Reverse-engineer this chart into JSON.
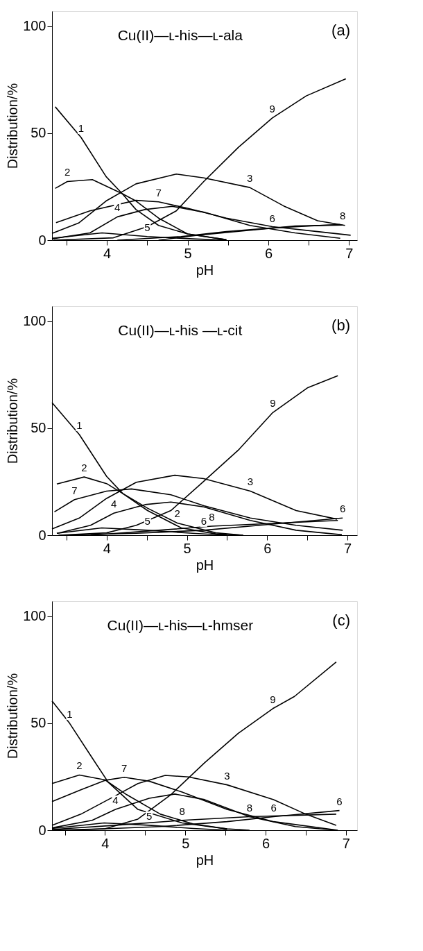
{
  "chart_data": [
    {
      "type": "line",
      "title": "Cu(II)—ʟ-his—ʟ-ala",
      "xlabel": "pH",
      "ylabel": "Distribution/%",
      "xlim": [
        3.32,
        7.1
      ],
      "ylim": [
        0,
        107
      ],
      "xticks": [
        {
          "value": 3.5,
          "label": null
        },
        4,
        {
          "value": 4.5,
          "label": null
        },
        5,
        {
          "value": 5.5,
          "label": null
        },
        6,
        {
          "value": 6.5,
          "label": null
        },
        7
      ],
      "yticks": [
        0,
        50,
        100
      ],
      "grid": false,
      "legend": false,
      "line_style": "solid",
      "marker": "none",
      "series": [
        {
          "color": "#000000",
          "x": [
            3.36,
            3.68,
            3.99,
            4.19,
            4.36,
            4.64,
            5.0,
            5.48
          ],
          "values": [
            62.3,
            48,
            29.7,
            21.7,
            14.3,
            6.9,
            2.9,
            0.2
          ]
        },
        {
          "color": "#000000",
          "x": [
            3.36,
            3.51,
            3.82,
            4.19,
            4.36,
            4.64,
            5.0,
            5.48
          ],
          "values": [
            24.2,
            27.4,
            28.3,
            21.7,
            18.3,
            10.3,
            2.9,
            0.2
          ]
        },
        {
          "color": "#000000",
          "x": [
            3.32,
            3.65,
            3.99,
            4.36,
            4.86,
            5.2,
            5.77,
            6.19,
            6.61,
            6.95
          ],
          "values": [
            3.2,
            8,
            18.3,
            26.3,
            30.9,
            29.1,
            24.6,
            16,
            9.1,
            6.9
          ]
        },
        {
          "color": "#000000",
          "x": [
            3.32,
            3.79,
            4.13,
            4.47,
            4.81,
            5.2,
            5.77,
            6.33,
            6.89
          ],
          "values": [
            0.6,
            3.4,
            10.9,
            14.3,
            15.8,
            13.1,
            6.9,
            3.4,
            0.9
          ]
        },
        {
          "color": "#000000",
          "x": [
            3.32,
            3.94,
            4.5,
            5.06,
            5.48
          ],
          "values": [
            0.9,
            3.4,
            1.7,
            0.6,
            0
          ]
        },
        {
          "color": "#000000",
          "x": [
            4.13,
            4.92,
            5.48,
            6.05,
            6.89
          ],
          "values": [
            0,
            1.7,
            4,
            5.7,
            7.4
          ]
        },
        {
          "color": "#000000",
          "x": [
            3.37,
            3.79,
            4.36,
            4.64,
            5.0,
            5.48,
            6.05,
            6.61,
            7.02
          ],
          "values": [
            8.2,
            13.7,
            18.6,
            17.9,
            14.9,
            10.3,
            6.3,
            4,
            2.3
          ]
        },
        {
          "color": "#000000",
          "x": [
            4.64,
            5.12,
            5.77,
            6.33,
            6.92
          ],
          "values": [
            0,
            2.3,
            4.6,
            6.6,
            7.1
          ]
        },
        {
          "color": "#000000",
          "x": [
            3.34,
            4.08,
            4.5,
            4.86,
            5.2,
            5.63,
            6.05,
            6.47,
            6.96
          ],
          "values": [
            0,
            1.1,
            6.3,
            13.7,
            27.4,
            43.4,
            57.1,
            67.4,
            75.4
          ]
        }
      ],
      "annotations": [
        "(a)",
        {
          "text": "1",
          "x": 3.68,
          "y": 48
        },
        {
          "text": "2",
          "x": 3.51,
          "y": 27.4
        },
        {
          "text": "3",
          "x": 5.77,
          "y": 24.6
        },
        {
          "text": "4",
          "x": 4.13,
          "y": 10.9
        },
        {
          "text": "5",
          "x": 4.5,
          "y": 1.7
        },
        {
          "text": "6",
          "x": 6.05,
          "y": 5.7
        },
        {
          "text": "7",
          "x": 4.64,
          "y": 17.9
        },
        {
          "text": "8",
          "x": 6.92,
          "y": 7.1
        },
        {
          "text": "9",
          "x": 6.05,
          "y": 57.1
        }
      ]
    },
    {
      "type": "line",
      "title": "Cu(II)—ʟ-his —ʟ-cit",
      "xlabel": "pH",
      "ylabel": "Distribution/%",
      "xlim": [
        3.32,
        7.12
      ],
      "ylim": [
        0,
        107
      ],
      "xticks": [
        {
          "value": 3.5,
          "label": null
        },
        4,
        {
          "value": 4.5,
          "label": null
        },
        5,
        {
          "value": 5.5,
          "label": null
        },
        6,
        {
          "value": 6.5,
          "label": null
        },
        7
      ],
      "yticks": [
        0,
        50,
        100
      ],
      "grid": false,
      "legend": false,
      "line_style": "solid",
      "marker": "none",
      "series": [
        {
          "color": "#000000",
          "x": [
            3.32,
            3.66,
            4.0,
            4.2,
            4.51,
            4.93,
            5.36,
            5.7
          ],
          "values": [
            61.9,
            47,
            27.5,
            19.5,
            11.5,
            3.4,
            0.6,
            0
          ]
        },
        {
          "color": "#000000",
          "x": [
            3.38,
            3.72,
            4.0,
            4.2,
            4.51,
            4.88,
            5.36,
            5.7
          ],
          "values": [
            23.9,
            27.2,
            24.1,
            19.5,
            12.6,
            5.7,
            1.1,
            0
          ]
        },
        {
          "color": "#000000",
          "x": [
            3.32,
            3.66,
            4.0,
            4.37,
            4.85,
            5.21,
            5.79,
            6.36,
            6.87
          ],
          "values": [
            2.9,
            8,
            17.2,
            24.7,
            28,
            26.4,
            20.6,
            11.5,
            7.5
          ]
        },
        {
          "color": "#000000",
          "x": [
            3.38,
            3.8,
            4.09,
            4.48,
            4.8,
            5.21,
            5.79,
            6.36,
            6.93
          ],
          "values": [
            0.8,
            4.6,
            10.3,
            14.3,
            15.5,
            13.2,
            6.9,
            2.3,
            0.2
          ]
        },
        {
          "color": "#000000",
          "x": [
            3.38,
            3.94,
            4.51,
            5.07,
            5.5
          ],
          "values": [
            0.9,
            3.4,
            2.3,
            0.9,
            0
          ]
        },
        {
          "color": "#000000",
          "x": [
            3.44,
            4.37,
            5.21,
            6.07,
            6.94
          ],
          "values": [
            0,
            0.9,
            2.3,
            5.2,
            8.0
          ]
        },
        {
          "color": "#000000",
          "x": [
            3.35,
            3.6,
            4.0,
            4.31,
            4.8,
            5.21,
            5.79,
            6.36,
            6.94
          ],
          "values": [
            10.9,
            16.6,
            20.6,
            21.6,
            18.9,
            13.8,
            8,
            4.6,
            2.3
          ]
        },
        {
          "color": "#000000",
          "x": [
            3.8,
            4.65,
            5.31,
            6.07,
            6.88
          ],
          "values": [
            0,
            2.3,
            4.2,
            5.5,
            6.9
          ]
        },
        {
          "color": "#000000",
          "x": [
            3.4,
            4.0,
            4.37,
            4.8,
            5.21,
            5.65,
            6.07,
            6.5,
            6.88
          ],
          "values": [
            0,
            1.1,
            4.6,
            11.5,
            25.2,
            40.1,
            57.3,
            68.8,
            74.5
          ]
        }
      ],
      "annotations": [
        "(b)",
        {
          "text": "1",
          "x": 3.66,
          "y": 47
        },
        {
          "text": "2",
          "x": 3.72,
          "y": 27.2
        },
        {
          "text": "2",
          "x": 4.88,
          "y": 5.7
        },
        {
          "text": "3",
          "x": 5.79,
          "y": 20.6
        },
        {
          "text": "4",
          "x": 4.09,
          "y": 10.3
        },
        {
          "text": "5",
          "x": 4.51,
          "y": 2.3
        },
        {
          "text": "6",
          "x": 5.21,
          "y": 2.3
        },
        {
          "text": "6",
          "x": 6.94,
          "y": 8.0
        },
        {
          "text": "7",
          "x": 3.6,
          "y": 16.6
        },
        {
          "text": "8",
          "x": 5.31,
          "y": 4.2
        },
        {
          "text": "9",
          "x": 6.07,
          "y": 57.3
        }
      ]
    },
    {
      "type": "line",
      "title": "Cu(II)—ʟ-his—ʟ-hmser",
      "xlabel": "pH",
      "ylabel": "Distribution/%",
      "xlim": [
        3.34,
        7.14
      ],
      "ylim": [
        0,
        107
      ],
      "xticks": [
        {
          "value": 3.5,
          "label": null
        },
        4,
        {
          "value": 4.5,
          "label": null
        },
        5,
        {
          "value": 5.5,
          "label": null
        },
        6,
        {
          "value": 6.5,
          "label": null
        },
        7
      ],
      "yticks": [
        0,
        50,
        100
      ],
      "grid": false,
      "legend": false,
      "line_style": "solid",
      "marker": "none",
      "series": [
        {
          "color": "#000000",
          "x": [
            3.34,
            3.56,
            3.84,
            4.04,
            4.41,
            4.96,
            5.52,
            5.8
          ],
          "values": [
            60.4,
            49.9,
            33.8,
            22.4,
            9.7,
            3.4,
            0.6,
            0
          ]
        },
        {
          "color": "#000000",
          "x": [
            3.34,
            3.68,
            4.0,
            4.27,
            4.69,
            5.1,
            5.52
          ],
          "values": [
            21.8,
            25.8,
            23.5,
            16.6,
            7.5,
            2.9,
            0.6
          ]
        },
        {
          "color": "#000000",
          "x": [
            3.34,
            3.7,
            4.13,
            4.41,
            4.75,
            5.04,
            5.52,
            6.1,
            6.5,
            6.88
          ],
          "values": [
            2.3,
            7.5,
            16.1,
            21.8,
            25.6,
            24.9,
            21.2,
            14.3,
            7.5,
            2.3
          ]
        },
        {
          "color": "#000000",
          "x": [
            3.34,
            3.84,
            4.13,
            4.55,
            4.87,
            5.24,
            5.8,
            6.37,
            6.88
          ],
          "values": [
            1.1,
            4.6,
            9.7,
            14.9,
            16.9,
            14.3,
            6.3,
            1.7,
            0
          ]
        },
        {
          "color": "#000000",
          "x": [
            3.34,
            3.99,
            4.55,
            5.1,
            5.52
          ],
          "values": [
            0.8,
            3.4,
            2.3,
            0.8,
            0
          ]
        },
        {
          "color": "#000000",
          "x": [
            3.56,
            4.69,
            5.52,
            6.1,
            6.92
          ],
          "values": [
            0,
            1.7,
            4,
            6.3,
            9.2
          ]
        },
        {
          "color": "#000000",
          "x": [
            3.34,
            3.7,
            4.0,
            4.24,
            4.55,
            4.96,
            5.52,
            6.1,
            6.9
          ],
          "values": [
            13.4,
            18.9,
            23.3,
            24.7,
            22.9,
            17.8,
            9.7,
            4,
            0
          ]
        },
        {
          "color": "#000000",
          "x": [
            3.34,
            4.13,
            4.96,
            5.8,
            6.88
          ],
          "values": [
            0.3,
            2.3,
            4.6,
            6.3,
            7.5
          ]
        },
        {
          "color": "#000000",
          "x": [
            3.34,
            3.99,
            4.41,
            4.82,
            5.24,
            5.66,
            6.09,
            6.36,
            6.88
          ],
          "values": [
            0,
            0.6,
            5.2,
            16.6,
            31.5,
            45.3,
            56.8,
            62.5,
            78.6
          ]
        }
      ],
      "annotations": [
        "(c)",
        {
          "text": "1",
          "x": 3.56,
          "y": 49.9
        },
        {
          "text": "2",
          "x": 3.68,
          "y": 25.8
        },
        {
          "text": "3",
          "x": 5.52,
          "y": 21.2
        },
        {
          "text": "4",
          "x": 4.13,
          "y": 9.7
        },
        {
          "text": "5",
          "x": 4.55,
          "y": 2.3
        },
        {
          "text": "6",
          "x": 6.1,
          "y": 6.3
        },
        {
          "text": "6",
          "x": 6.92,
          "y": 9.2
        },
        {
          "text": "7",
          "x": 4.24,
          "y": 24.7
        },
        {
          "text": "8",
          "x": 4.96,
          "y": 4.6
        },
        {
          "text": "8",
          "x": 5.8,
          "y": 6.3
        },
        {
          "text": "9",
          "x": 6.09,
          "y": 56.8
        }
      ]
    }
  ]
}
